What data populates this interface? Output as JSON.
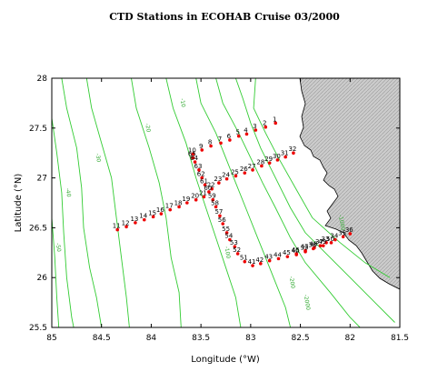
{
  "chart_data": {
    "type": "scatter",
    "title": "CTD Stations in ECOHAB Cruise 03/2000",
    "xlabel": "Longitude (°W)",
    "ylabel": "Latitude (°N)",
    "xlim": [
      85,
      81.5
    ],
    "ylim": [
      25.5,
      28
    ],
    "x_ticks": [
      "85",
      "84.5",
      "84",
      "83.5",
      "83",
      "82.5",
      "82",
      "81.5"
    ],
    "y_ticks": [
      "25.5",
      "26",
      "26.5",
      "27",
      "27.5",
      "28"
    ],
    "grid": false,
    "marker_color": "#ee0000",
    "contour_color": "#33cc33",
    "land_fill": "#cccccc",
    "stations": [
      {
        "id": "1",
        "lon": 82.75,
        "lat": 27.55
      },
      {
        "id": "2",
        "lon": 82.85,
        "lat": 27.51
      },
      {
        "id": "3",
        "lon": 82.95,
        "lat": 27.48
      },
      {
        "id": "4",
        "lon": 83.04,
        "lat": 27.44
      },
      {
        "id": "5",
        "lon": 83.12,
        "lat": 27.42
      },
      {
        "id": "6",
        "lon": 83.21,
        "lat": 27.38
      },
      {
        "id": "7",
        "lon": 83.3,
        "lat": 27.35
      },
      {
        "id": "8",
        "lon": 83.4,
        "lat": 27.32
      },
      {
        "id": "9",
        "lon": 83.49,
        "lat": 27.28
      },
      {
        "id": "10",
        "lon": 83.58,
        "lat": 27.24
      },
      {
        "id": "11",
        "lon": 84.34,
        "lat": 26.48
      },
      {
        "id": "12",
        "lon": 84.25,
        "lat": 26.51
      },
      {
        "id": "13",
        "lon": 84.16,
        "lat": 26.55
      },
      {
        "id": "14",
        "lon": 84.07,
        "lat": 26.58
      },
      {
        "id": "15",
        "lon": 83.98,
        "lat": 26.61
      },
      {
        "id": "16",
        "lon": 83.9,
        "lat": 26.64
      },
      {
        "id": "17",
        "lon": 83.81,
        "lat": 26.68
      },
      {
        "id": "18",
        "lon": 83.72,
        "lat": 26.71
      },
      {
        "id": "19",
        "lon": 83.64,
        "lat": 26.75
      },
      {
        "id": "20",
        "lon": 83.55,
        "lat": 26.78
      },
      {
        "id": "21",
        "lon": 83.47,
        "lat": 26.81
      },
      {
        "id": "22",
        "lon": 83.39,
        "lat": 26.89
      },
      {
        "id": "23",
        "lon": 83.32,
        "lat": 26.95
      },
      {
        "id": "24",
        "lon": 83.24,
        "lat": 26.99
      },
      {
        "id": "25",
        "lon": 83.15,
        "lat": 27.02
      },
      {
        "id": "26",
        "lon": 83.06,
        "lat": 27.05
      },
      {
        "id": "27",
        "lon": 82.98,
        "lat": 27.08
      },
      {
        "id": "28",
        "lon": 82.89,
        "lat": 27.12
      },
      {
        "id": "29",
        "lon": 82.81,
        "lat": 27.15
      },
      {
        "id": "30",
        "lon": 82.73,
        "lat": 27.18
      },
      {
        "id": "31",
        "lon": 82.65,
        "lat": 27.21
      },
      {
        "id": "32",
        "lon": 82.57,
        "lat": 27.25
      },
      {
        "id": "33",
        "lon": 82.24,
        "lat": 26.35
      },
      {
        "id": "34",
        "lon": 82.15,
        "lat": 26.38
      },
      {
        "id": "35",
        "lon": 82.07,
        "lat": 26.41
      },
      {
        "id": "36",
        "lon": 82.0,
        "lat": 26.44
      },
      {
        "id": "37",
        "lon": 82.3,
        "lat": 26.32
      },
      {
        "id": "38",
        "lon": 82.37,
        "lat": 26.29
      },
      {
        "id": "39",
        "lon": 82.45,
        "lat": 26.26
      },
      {
        "id": "40",
        "lon": 82.54,
        "lat": 26.23
      },
      {
        "id": "41",
        "lon": 82.98,
        "lat": 26.12
      },
      {
        "id": "42",
        "lon": 82.9,
        "lat": 26.14
      },
      {
        "id": "43",
        "lon": 82.81,
        "lat": 26.17
      },
      {
        "id": "44",
        "lon": 82.72,
        "lat": 26.19
      },
      {
        "id": "45",
        "lon": 82.63,
        "lat": 26.21
      },
      {
        "id": "46",
        "lon": 82.54,
        "lat": 26.24
      },
      {
        "id": "47",
        "lon": 82.45,
        "lat": 26.27
      },
      {
        "id": "48",
        "lon": 82.36,
        "lat": 26.3
      },
      {
        "id": "49",
        "lon": 82.27,
        "lat": 26.32
      },
      {
        "id": "50",
        "lon": 82.19,
        "lat": 26.35
      },
      {
        "id": "51",
        "lon": 83.06,
        "lat": 26.16
      },
      {
        "id": "52",
        "lon": 83.13,
        "lat": 26.24
      },
      {
        "id": "53",
        "lon": 83.16,
        "lat": 26.31
      },
      {
        "id": "54",
        "lon": 83.21,
        "lat": 26.38
      },
      {
        "id": "55",
        "lon": 83.24,
        "lat": 26.45
      },
      {
        "id": "56",
        "lon": 83.28,
        "lat": 26.54
      },
      {
        "id": "57",
        "lon": 83.31,
        "lat": 26.62
      },
      {
        "id": "58",
        "lon": 83.35,
        "lat": 26.71
      },
      {
        "id": "59",
        "lon": 83.38,
        "lat": 26.78
      },
      {
        "id": "60",
        "lon": 83.42,
        "lat": 26.86
      },
      {
        "id": "61",
        "lon": 83.46,
        "lat": 26.93
      },
      {
        "id": "62",
        "lon": 83.49,
        "lat": 27.0
      },
      {
        "id": "63",
        "lon": 83.52,
        "lat": 27.08
      },
      {
        "id": "64",
        "lon": 83.56,
        "lat": 27.16
      },
      {
        "id": "65",
        "lon": 83.58,
        "lat": 27.2
      }
    ],
    "contour_labels": [
      "-10",
      "-20",
      "-30",
      "-40",
      "-50",
      "-100",
      "-200",
      "-1000",
      "-2000"
    ]
  }
}
